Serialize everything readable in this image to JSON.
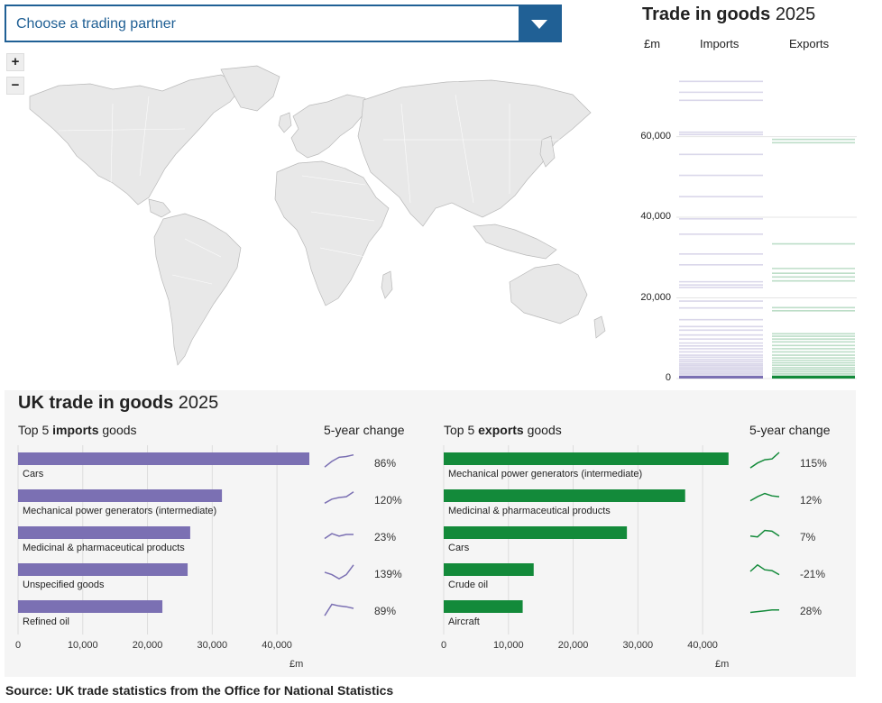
{
  "dropdown": {
    "placeholder": "Choose a trading partner"
  },
  "zoom": {
    "in_label": "+",
    "out_label": "−"
  },
  "colors": {
    "imports": "#7b70b3",
    "exports": "#138a3a",
    "accent": "#206095"
  },
  "distribution": {
    "title": "Trade in goods",
    "year": "2025",
    "unit": "£m",
    "imports_label": "Imports",
    "exports_label": "Exports",
    "y_ticks": [
      "0",
      "20,000",
      "40,000",
      "60,000"
    ],
    "y_tick_values": [
      0,
      20000,
      40000,
      60000
    ],
    "ymax": 76000
  },
  "lower": {
    "title": "UK trade in goods",
    "year": "2025",
    "imports_head_pre": "Top 5 ",
    "imports_head_bold": "imports",
    "imports_head_post": " goods",
    "exports_head_pre": "Top 5 ",
    "exports_head_bold": "exports",
    "exports_head_post": " goods",
    "change_label": "5-year change",
    "unit": "£m"
  },
  "source": "Source: UK trade statistics from the Office for National Statistics",
  "chart_data": [
    {
      "type": "line",
      "title": "Trade in goods 2025",
      "ylabel": "£m",
      "ylim": [
        0,
        76000
      ],
      "series": [
        {
          "name": "Imports",
          "values": [
            73700,
            71000,
            69000,
            61100,
            60500,
            55600,
            50400,
            45100,
            39600,
            35800,
            30900,
            28200,
            24000,
            23200,
            22600,
            19200,
            17500,
            14600,
            12900,
            12000,
            10800,
            9800,
            8800,
            8100,
            7400,
            6600,
            5800,
            5300,
            4700,
            4200,
            3700,
            3300,
            2900,
            2500,
            2100,
            1700,
            1300,
            900,
            500,
            200
          ]
        },
        {
          "name": "Exports",
          "values": [
            59300,
            58500,
            33400,
            27300,
            26100,
            25200,
            24200,
            17600,
            16800,
            11100,
            10500,
            9800,
            9100,
            8200,
            7400,
            6600,
            5800,
            5100,
            4500,
            3900,
            3300,
            2700,
            2200,
            1700,
            1200,
            800,
            400,
            150
          ]
        }
      ]
    },
    {
      "type": "bar",
      "title": "Top 5 imports goods",
      "xlabel": "£m",
      "xlim": [
        0,
        45000
      ],
      "ticks": [
        "0",
        "10,000",
        "20,000",
        "30,000",
        "40,000"
      ],
      "categories": [
        "Cars",
        "Mechanical power generators (intermediate)",
        "Medicinal & pharmaceutical products",
        "Unspecified goods",
        "Refined oil"
      ],
      "values": [
        45000,
        31500,
        26600,
        26200,
        22300
      ],
      "change": [
        "86%",
        "120%",
        "23%",
        "139%",
        "89%"
      ],
      "trends": [
        [
          0.1,
          0.45,
          0.7,
          0.75,
          0.85
        ],
        [
          0.15,
          0.4,
          0.5,
          0.55,
          0.85
        ],
        [
          0.25,
          0.55,
          0.4,
          0.5,
          0.5
        ],
        [
          0.45,
          0.3,
          0.05,
          0.3,
          0.9
        ],
        [
          0.05,
          0.75,
          0.65,
          0.6,
          0.5
        ]
      ]
    },
    {
      "type": "bar",
      "title": "Top 5 exports goods",
      "xlabel": "£m",
      "xlim": [
        0,
        45000
      ],
      "ticks": [
        "0",
        "10,000",
        "20,000",
        "30,000",
        "40,000"
      ],
      "categories": [
        "Mechanical power generators (intermediate)",
        "Medicinal & pharmaceutical products",
        "Cars",
        "Crude oil",
        "Aircraft"
      ],
      "values": [
        44000,
        37300,
        28300,
        13900,
        12200
      ],
      "change": [
        "115%",
        "12%",
        "7%",
        "-21%",
        "28%"
      ],
      "trends": [
        [
          0.05,
          0.35,
          0.55,
          0.6,
          1.0
        ],
        [
          0.3,
          0.55,
          0.75,
          0.6,
          0.55
        ],
        [
          0.4,
          0.35,
          0.75,
          0.7,
          0.4
        ],
        [
          0.5,
          0.9,
          0.6,
          0.55,
          0.3
        ],
        [
          0.25,
          0.3,
          0.35,
          0.4,
          0.4
        ]
      ]
    }
  ]
}
